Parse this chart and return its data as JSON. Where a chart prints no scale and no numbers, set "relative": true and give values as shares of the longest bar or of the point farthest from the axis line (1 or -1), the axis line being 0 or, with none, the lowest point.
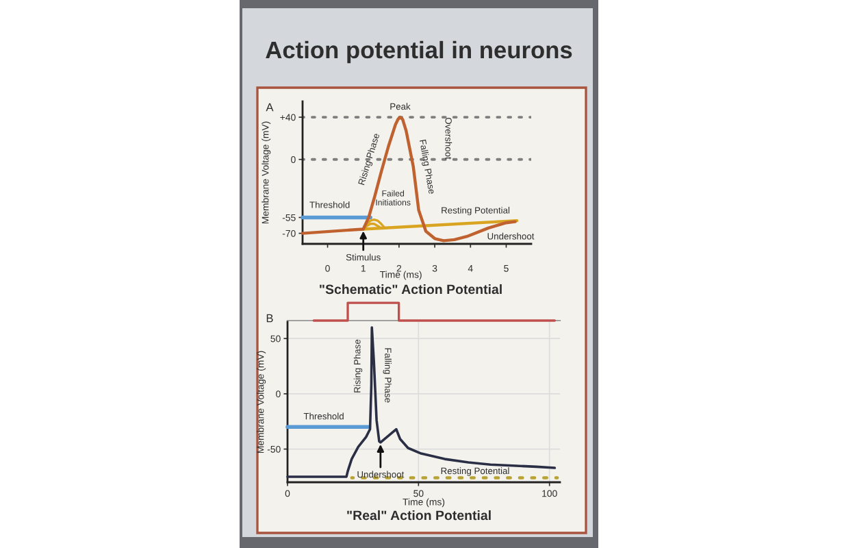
{
  "chart_data": [
    {
      "type": "other",
      "title": "Action potential in neurons"
    },
    {
      "type": "line",
      "title": "\"Schematic\" Action Potential",
      "xlabel": "Time (ms)",
      "ylabel": "Membrane Voltage (mV)",
      "xlim": [
        -0.7,
        5.7
      ],
      "xticks": [
        0,
        1,
        2,
        3,
        4,
        5
      ],
      "ylim": [
        -80,
        55
      ],
      "yticks": [
        -70,
        -55,
        0,
        {
          "value": 40,
          "label": "+40"
        }
      ],
      "series": [
        {
          "name": "Threshold",
          "color": "#5b9bd5",
          "x": [
            -0.7,
            1.2
          ],
          "values": [
            -55,
            -55
          ]
        },
        {
          "name": "Resting Potential",
          "color": "#d9a521",
          "x": [
            1.0,
            5.3
          ],
          "values": [
            -66,
            -58
          ]
        },
        {
          "color": "#d9a521",
          "x": [
            1.0,
            1.1,
            1.2,
            1.3,
            1.4,
            1.5,
            1.6
          ],
          "values": [
            -66,
            -61,
            -58,
            -57,
            -58,
            -61,
            -65
          ]
        },
        {
          "color": "#d9a521",
          "x": [
            1.0,
            1.1,
            1.2,
            1.3,
            1.4,
            1.5
          ],
          "values": [
            -66,
            -63,
            -61,
            -61,
            -63,
            -65
          ]
        },
        {
          "color": "#c0622f",
          "x": [
            -0.7,
            1.0,
            1.15,
            1.32,
            1.5,
            1.7,
            1.9,
            1.97,
            2.03,
            2.1,
            2.2,
            2.4,
            2.55,
            2.75,
            3.0,
            3.25,
            3.55,
            3.9,
            4.5,
            5.0,
            5.25
          ],
          "values": [
            -70,
            -66,
            -55,
            -35,
            -12,
            12,
            33,
            38,
            40,
            38,
            27,
            -7,
            -48,
            -68,
            -75,
            -77,
            -76,
            -73,
            -65,
            -60,
            -59
          ]
        }
      ],
      "ref_lines": [
        {
          "axis": "y",
          "value": 40,
          "color": "#7f7f7f",
          "line_style": "dotted"
        },
        {
          "axis": "y",
          "value": 0,
          "color": "#7f7f7f",
          "line_style": "dotted"
        }
      ],
      "annotations": [
        "A",
        {
          "text": "Peak",
          "x": 2.03,
          "y": 40
        },
        {
          "text": "Rising Phase",
          "x": 1.6,
          "y": 0
        },
        {
          "text": "Falling Phase",
          "x": 2.4,
          "y": -7
        },
        "Overshoot",
        {
          "text": "Failed\nInitiations",
          "x": 1.3,
          "y": -57
        },
        {
          "text": "Stimulus",
          "x": 1.0,
          "y": -66
        },
        "Undershoot"
      ]
    },
    {
      "type": "step",
      "relative": true,
      "tick_labels": false,
      "xlim": [
        0,
        104
      ],
      "series": [
        {
          "color": "#c0504d",
          "x": [
            10,
            23,
            42.5,
            102
          ],
          "values": [
            0,
            1,
            0,
            0
          ]
        }
      ]
    },
    {
      "type": "line",
      "title": "\"Real\" Action Potential",
      "xlabel": "Time (ms)",
      "ylabel": "Membrane Voltage (mV)",
      "xlim": [
        0,
        104
      ],
      "xticks": [
        0,
        50,
        100
      ],
      "ylim": [
        -80,
        65
      ],
      "yticks": [
        -50,
        0,
        50
      ],
      "grid": true,
      "series": [
        {
          "name": "Threshold",
          "color": "#5b9bd5",
          "x": [
            0,
            30.8
          ],
          "values": [
            -30,
            -30
          ]
        },
        {
          "name": "Resting Potential",
          "color": "#b8a233",
          "line_style": "dotted",
          "x": [
            24.5,
            103
          ],
          "values": [
            -76,
            -76
          ]
        },
        {
          "color": "#2b2f45",
          "x": [
            0,
            22.5,
            23,
            24.5,
            27,
            30,
            31.5,
            32,
            32.2,
            33,
            34,
            35,
            35.5,
            41.5,
            43,
            46,
            51,
            60,
            69,
            77.5,
            86,
            95,
            102
          ],
          "values": [
            -75,
            -75,
            -70,
            -59,
            -48,
            -39,
            -32,
            8,
            60,
            28,
            -24,
            -43,
            -44,
            -32,
            -41,
            -49,
            -54,
            -59,
            -62,
            -64,
            -65,
            -66,
            -67
          ]
        }
      ],
      "annotations": [
        "B",
        {
          "text": "Rising Phase",
          "x": 32,
          "y": 25
        },
        {
          "text": "Falling Phase",
          "x": 33,
          "y": 22
        },
        {
          "text": "Undershoot",
          "x": 35.5,
          "y": -44
        }
      ]
    }
  ]
}
